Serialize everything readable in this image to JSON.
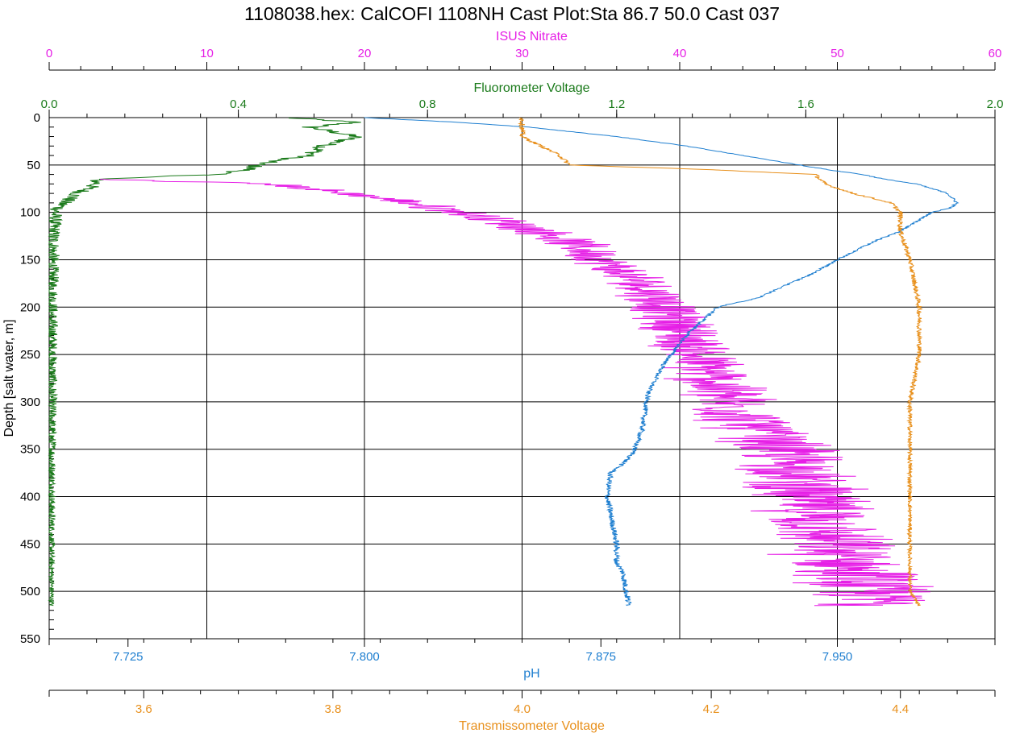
{
  "title": "1108038.hex: CalCOFI 1108NH Cast Plot:Sta 86.7 50.0  Cast 037",
  "chart_data": {
    "type": "line",
    "orientation": "depth-profile",
    "grid": true,
    "y_axis": {
      "label": "Depth [salt water, m]",
      "range": [
        0,
        550
      ],
      "inverted": true,
      "ticks": [
        0,
        50,
        100,
        150,
        200,
        250,
        300,
        350,
        400,
        450,
        500,
        550
      ]
    },
    "x_axes": [
      {
        "id": "nitrate",
        "label": "ISUS Nitrate",
        "position": "top",
        "color": "#e61ee6",
        "range": [
          0,
          60
        ],
        "ticks": [
          0,
          10,
          20,
          30,
          40,
          50,
          60
        ],
        "tick_labels": [
          "0",
          "10",
          "20",
          "30",
          "40",
          "50",
          "60"
        ]
      },
      {
        "id": "fluor",
        "label": "Fluorometer Voltage",
        "position": "top",
        "color": "#1a7a1a",
        "range": [
          0,
          2
        ],
        "ticks": [
          0,
          0.4,
          0.8,
          1.2,
          1.6,
          2.0
        ],
        "tick_labels": [
          "0.0",
          "0.4",
          "0.8",
          "1.2",
          "1.6",
          "2.0"
        ]
      },
      {
        "id": "ph",
        "label": "pH",
        "position": "bottom",
        "color": "#1f7fd0",
        "range": [
          7.7,
          8.0
        ],
        "ticks": [
          7.725,
          7.8,
          7.875,
          7.95
        ],
        "tick_labels": [
          "7.725",
          "7.800",
          "7.875",
          "7.950"
        ]
      },
      {
        "id": "trans",
        "label": "Transmissometer Voltage",
        "position": "bottom",
        "color": "#e8901c",
        "range": [
          3.5,
          4.5
        ],
        "ticks": [
          3.6,
          3.8,
          4.0,
          4.2,
          4.4
        ],
        "tick_labels": [
          "3.6",
          "3.8",
          "4.0",
          "4.2",
          "4.4"
        ]
      }
    ],
    "series": [
      {
        "axis": "fluor",
        "color": "#1a7a1a",
        "noise": [
          0.02,
          0.005
        ],
        "depth": [
          0,
          5,
          10,
          20,
          30,
          40,
          45,
          50,
          55,
          60,
          65,
          70,
          75,
          80,
          90,
          100,
          120,
          150,
          200,
          300,
          400,
          500,
          515
        ],
        "values": [
          0.5,
          0.65,
          0.55,
          0.65,
          0.58,
          0.55,
          0.48,
          0.44,
          0.42,
          0.35,
          0.1,
          0.1,
          0.08,
          0.06,
          0.03,
          0.012,
          0.008,
          0.006,
          0.005,
          0.005,
          0.005,
          0.005,
          0.005
        ]
      },
      {
        "axis": "nitrate",
        "color": "#e61ee6",
        "noise": [
          1.0,
          3.0
        ],
        "depth": [
          65,
          70,
          80,
          90,
          100,
          110,
          120,
          130,
          140,
          160,
          180,
          200,
          220,
          250,
          275,
          300,
          330,
          360,
          400,
          430,
          460,
          480,
          500,
          515
        ],
        "values": [
          3,
          14,
          19,
          23,
          26,
          29,
          31,
          33,
          34,
          36,
          38,
          39,
          40,
          41,
          42,
          43,
          45,
          47,
          48,
          49,
          50,
          51,
          52,
          53
        ]
      },
      {
        "axis": "ph",
        "color": "#1f7fd0",
        "noise": [
          0.0005,
          0.001
        ],
        "depth": [
          0,
          5,
          10,
          20,
          30,
          40,
          50,
          55,
          60,
          65,
          70,
          80,
          90,
          95,
          100,
          110,
          120,
          130,
          150,
          165,
          175,
          190,
          200,
          230,
          260,
          290,
          330,
          355,
          365,
          375,
          400,
          450,
          470,
          480,
          500,
          515
        ],
        "values": [
          7.8,
          7.83,
          7.852,
          7.88,
          7.902,
          7.92,
          7.938,
          7.947,
          7.958,
          7.965,
          7.975,
          7.985,
          7.988,
          7.986,
          7.98,
          7.975,
          7.97,
          7.962,
          7.95,
          7.942,
          7.935,
          7.925,
          7.912,
          7.902,
          7.895,
          7.89,
          7.888,
          7.885,
          7.882,
          7.878,
          7.877,
          7.88,
          7.88,
          7.882,
          7.883,
          7.884
        ]
      },
      {
        "axis": "trans",
        "color": "#e8901c",
        "noise": [
          0.003,
          0.002
        ],
        "depth": [
          0,
          10,
          20,
          30,
          40,
          50,
          55,
          60,
          70,
          80,
          90,
          100,
          120,
          150,
          200,
          250,
          300,
          350,
          380,
          400,
          450,
          500,
          515
        ],
        "values": [
          4.0,
          4.0,
          4.0,
          4.02,
          4.04,
          4.05,
          4.2,
          4.31,
          4.32,
          4.35,
          4.39,
          4.4,
          4.4,
          4.41,
          4.42,
          4.42,
          4.41,
          4.41,
          4.41,
          4.41,
          4.41,
          4.41,
          4.42
        ]
      }
    ]
  }
}
